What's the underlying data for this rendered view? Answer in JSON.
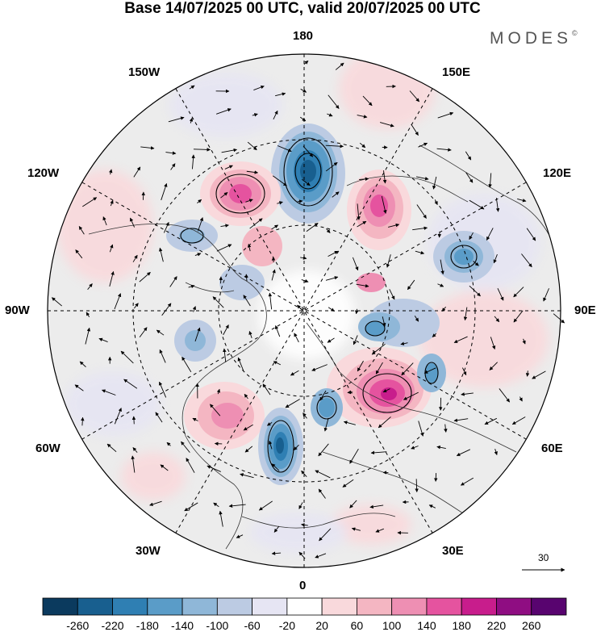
{
  "title": "Base 14/07/2025 00 UTC, valid 20/07/2025 00 UTC",
  "logo": "MODES",
  "logo_mark": "©",
  "longitude_labels": {
    "top": "180",
    "upper_left": "150W",
    "upper_right": "150E",
    "mid_upper_left": "120W",
    "mid_upper_right": "120E",
    "left": "90W",
    "right": "90E",
    "mid_lower_left": "60W",
    "mid_lower_right": "60E",
    "lower_left": "30W",
    "lower_right": "30E",
    "bottom": "0"
  },
  "vector_reference": {
    "label": "30"
  },
  "colorbar": {
    "colors": [
      "#0b3a5e",
      "#185f8f",
      "#2f7fb3",
      "#5a9cc8",
      "#8fb7d8",
      "#bccbe3",
      "#e6e5f3",
      "#ffffff",
      "#f9d9dc",
      "#f4b6c2",
      "#ee8fb3",
      "#e5539f",
      "#c81d8c",
      "#8f0d82",
      "#58046f"
    ],
    "labels": [
      "-260",
      "-220",
      "-180",
      "-140",
      "-100",
      "-60",
      "-20",
      "20",
      "60",
      "100",
      "140",
      "180",
      "220",
      "260"
    ]
  },
  "anomaly_centers": [
    {
      "type": "negative",
      "level": 5
    },
    {
      "type": "positive",
      "level": 4
    },
    {
      "type": "positive",
      "level": 4
    },
    {
      "type": "positive",
      "level": 4
    },
    {
      "type": "negative",
      "level": 5
    },
    {
      "type": "negative",
      "level": 3
    },
    {
      "type": "negative",
      "level": 3
    },
    {
      "type": "positive",
      "level": 2
    },
    {
      "type": "negative",
      "level": 2
    }
  ]
}
